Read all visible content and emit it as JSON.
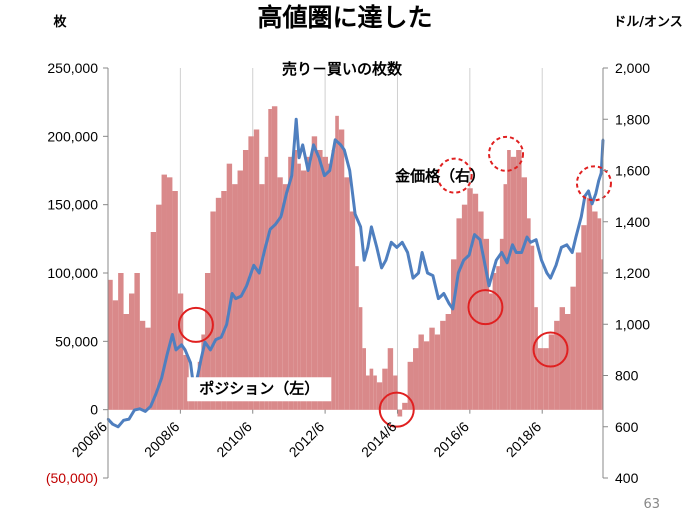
{
  "chart_data": {
    "type": "bar+line",
    "title": "高値圏に達した",
    "subtitle": "売り－買いの枚数",
    "left_axis": {
      "unit": "枚",
      "ylim": [
        -50000,
        250000
      ],
      "ticks": [
        250000,
        200000,
        150000,
        100000,
        50000,
        0,
        -50000
      ],
      "tick_labels": [
        "250,000",
        "200,000",
        "150,000",
        "100,000",
        "50,000",
        "0",
        "(50,000)"
      ]
    },
    "right_axis": {
      "unit": "ドル/オンス",
      "ylim": [
        400,
        2000
      ],
      "ticks": [
        2000,
        1800,
        1600,
        1400,
        1200,
        1000,
        800,
        600,
        400
      ],
      "tick_labels": [
        "2,000",
        "1,800",
        "1,600",
        "1,400",
        "1,200",
        "1,000",
        "800",
        "600",
        "400"
      ]
    },
    "x_axis": {
      "range": [
        2006.42,
        2020.1
      ],
      "ticks": [
        2006.42,
        2008.42,
        2010.42,
        2012.42,
        2014.42,
        2016.42,
        2018.42
      ],
      "tick_labels": [
        "2006/6",
        "2008/6",
        "2010/6",
        "2012/6",
        "2014/6",
        "2016/6",
        "2018/6"
      ]
    },
    "series": [
      {
        "name": "ポジション（左）",
        "type": "bar",
        "axis": "left",
        "color": "#d9898a",
        "points": [
          [
            2006.42,
            95000
          ],
          [
            2006.55,
            80000
          ],
          [
            2006.7,
            100000
          ],
          [
            2006.85,
            70000
          ],
          [
            2007.0,
            85000
          ],
          [
            2007.15,
            100000
          ],
          [
            2007.3,
            65000
          ],
          [
            2007.45,
            60000
          ],
          [
            2007.6,
            130000
          ],
          [
            2007.75,
            150000
          ],
          [
            2007.9,
            172000
          ],
          [
            2008.05,
            170000
          ],
          [
            2008.2,
            160000
          ],
          [
            2008.35,
            85000
          ],
          [
            2008.5,
            40000
          ],
          [
            2008.65,
            20000
          ],
          [
            2008.8,
            10000
          ],
          [
            2008.9,
            35000
          ],
          [
            2009.0,
            55000
          ],
          [
            2009.1,
            100000
          ],
          [
            2009.25,
            145000
          ],
          [
            2009.4,
            155000
          ],
          [
            2009.55,
            160000
          ],
          [
            2009.7,
            180000
          ],
          [
            2009.85,
            165000
          ],
          [
            2010.0,
            175000
          ],
          [
            2010.15,
            190000
          ],
          [
            2010.3,
            200000
          ],
          [
            2010.45,
            205000
          ],
          [
            2010.6,
            165000
          ],
          [
            2010.75,
            185000
          ],
          [
            2010.85,
            220000
          ],
          [
            2010.95,
            222000
          ],
          [
            2011.1,
            170000
          ],
          [
            2011.25,
            165000
          ],
          [
            2011.4,
            185000
          ],
          [
            2011.55,
            190000
          ],
          [
            2011.65,
            180000
          ],
          [
            2011.75,
            175000
          ],
          [
            2011.9,
            185000
          ],
          [
            2012.05,
            200000
          ],
          [
            2012.2,
            190000
          ],
          [
            2012.35,
            185000
          ],
          [
            2012.5,
            180000
          ],
          [
            2012.6,
            190000
          ],
          [
            2012.7,
            215000
          ],
          [
            2012.8,
            205000
          ],
          [
            2012.95,
            170000
          ],
          [
            2013.1,
            145000
          ],
          [
            2013.25,
            105000
          ],
          [
            2013.35,
            75000
          ],
          [
            2013.45,
            45000
          ],
          [
            2013.55,
            25000
          ],
          [
            2013.65,
            30000
          ],
          [
            2013.75,
            25000
          ],
          [
            2013.85,
            20000
          ],
          [
            2014.0,
            30000
          ],
          [
            2014.15,
            45000
          ],
          [
            2014.3,
            25000
          ],
          [
            2014.42,
            -5000
          ],
          [
            2014.55,
            5000
          ],
          [
            2014.7,
            35000
          ],
          [
            2014.85,
            45000
          ],
          [
            2015.0,
            55000
          ],
          [
            2015.15,
            50000
          ],
          [
            2015.3,
            60000
          ],
          [
            2015.45,
            55000
          ],
          [
            2015.6,
            65000
          ],
          [
            2015.75,
            70000
          ],
          [
            2015.9,
            110000
          ],
          [
            2016.05,
            140000
          ],
          [
            2016.2,
            150000
          ],
          [
            2016.35,
            162000
          ],
          [
            2016.5,
            158000
          ],
          [
            2016.65,
            145000
          ],
          [
            2016.8,
            125000
          ],
          [
            2016.95,
            85000
          ],
          [
            2017.05,
            100000
          ],
          [
            2017.15,
            105000
          ],
          [
            2017.25,
            125000
          ],
          [
            2017.35,
            165000
          ],
          [
            2017.45,
            190000
          ],
          [
            2017.55,
            185000
          ],
          [
            2017.7,
            190000
          ],
          [
            2017.85,
            170000
          ],
          [
            2018.0,
            140000
          ],
          [
            2018.1,
            120000
          ],
          [
            2018.2,
            75000
          ],
          [
            2018.3,
            45000
          ],
          [
            2018.45,
            45000
          ],
          [
            2018.6,
            55000
          ],
          [
            2018.75,
            65000
          ],
          [
            2018.9,
            75000
          ],
          [
            2019.05,
            70000
          ],
          [
            2019.2,
            90000
          ],
          [
            2019.35,
            115000
          ],
          [
            2019.5,
            135000
          ],
          [
            2019.65,
            155000
          ],
          [
            2019.8,
            145000
          ],
          [
            2019.95,
            140000
          ],
          [
            2020.05,
            110000
          ]
        ]
      },
      {
        "name": "金価格（右）",
        "type": "line",
        "axis": "right",
        "color": "#4f7fbf",
        "points": [
          [
            2006.42,
            630
          ],
          [
            2006.55,
            610
          ],
          [
            2006.7,
            600
          ],
          [
            2006.85,
            625
          ],
          [
            2007.0,
            630
          ],
          [
            2007.15,
            665
          ],
          [
            2007.3,
            670
          ],
          [
            2007.45,
            660
          ],
          [
            2007.6,
            680
          ],
          [
            2007.75,
            730
          ],
          [
            2007.9,
            790
          ],
          [
            2008.05,
            880
          ],
          [
            2008.2,
            960
          ],
          [
            2008.3,
            900
          ],
          [
            2008.45,
            920
          ],
          [
            2008.55,
            900
          ],
          [
            2008.7,
            850
          ],
          [
            2008.8,
            740
          ],
          [
            2008.9,
            800
          ],
          [
            2009.0,
            870
          ],
          [
            2009.1,
            930
          ],
          [
            2009.25,
            900
          ],
          [
            2009.4,
            940
          ],
          [
            2009.55,
            950
          ],
          [
            2009.7,
            1000
          ],
          [
            2009.85,
            1120
          ],
          [
            2009.95,
            1100
          ],
          [
            2010.1,
            1110
          ],
          [
            2010.25,
            1150
          ],
          [
            2010.45,
            1230
          ],
          [
            2010.6,
            1200
          ],
          [
            2010.75,
            1290
          ],
          [
            2010.9,
            1370
          ],
          [
            2011.05,
            1390
          ],
          [
            2011.2,
            1420
          ],
          [
            2011.35,
            1510
          ],
          [
            2011.5,
            1580
          ],
          [
            2011.62,
            1800
          ],
          [
            2011.7,
            1650
          ],
          [
            2011.8,
            1700
          ],
          [
            2011.95,
            1600
          ],
          [
            2012.1,
            1700
          ],
          [
            2012.25,
            1650
          ],
          [
            2012.4,
            1580
          ],
          [
            2012.55,
            1600
          ],
          [
            2012.7,
            1720
          ],
          [
            2012.85,
            1700
          ],
          [
            2012.95,
            1680
          ],
          [
            2013.1,
            1600
          ],
          [
            2013.25,
            1430
          ],
          [
            2013.4,
            1380
          ],
          [
            2013.5,
            1250
          ],
          [
            2013.6,
            1300
          ],
          [
            2013.7,
            1380
          ],
          [
            2013.85,
            1300
          ],
          [
            2013.98,
            1220
          ],
          [
            2014.1,
            1250
          ],
          [
            2014.25,
            1320
          ],
          [
            2014.4,
            1300
          ],
          [
            2014.55,
            1320
          ],
          [
            2014.7,
            1280
          ],
          [
            2014.85,
            1180
          ],
          [
            2015.0,
            1200
          ],
          [
            2015.1,
            1280
          ],
          [
            2015.25,
            1200
          ],
          [
            2015.4,
            1190
          ],
          [
            2015.55,
            1100
          ],
          [
            2015.7,
            1120
          ],
          [
            2015.85,
            1080
          ],
          [
            2015.95,
            1060
          ],
          [
            2016.1,
            1200
          ],
          [
            2016.25,
            1250
          ],
          [
            2016.4,
            1270
          ],
          [
            2016.55,
            1350
          ],
          [
            2016.7,
            1330
          ],
          [
            2016.8,
            1260
          ],
          [
            2016.95,
            1150
          ],
          [
            2017.05,
            1200
          ],
          [
            2017.15,
            1250
          ],
          [
            2017.3,
            1280
          ],
          [
            2017.45,
            1240
          ],
          [
            2017.6,
            1310
          ],
          [
            2017.7,
            1280
          ],
          [
            2017.85,
            1280
          ],
          [
            2018.0,
            1340
          ],
          [
            2018.1,
            1320
          ],
          [
            2018.25,
            1330
          ],
          [
            2018.4,
            1250
          ],
          [
            2018.55,
            1200
          ],
          [
            2018.65,
            1180
          ],
          [
            2018.8,
            1230
          ],
          [
            2018.95,
            1300
          ],
          [
            2019.1,
            1310
          ],
          [
            2019.25,
            1280
          ],
          [
            2019.35,
            1340
          ],
          [
            2019.5,
            1420
          ],
          [
            2019.6,
            1500
          ],
          [
            2019.7,
            1520
          ],
          [
            2019.8,
            1470
          ],
          [
            2019.9,
            1510
          ],
          [
            2019.98,
            1560
          ],
          [
            2020.05,
            1590
          ],
          [
            2020.1,
            1720
          ]
        ]
      }
    ],
    "annotations": [
      {
        "text": "金価格（右）",
        "x": 2015.6,
        "y_right": 1560
      },
      {
        "text": "ポジション（左）",
        "x": 2010.6,
        "y_left": 12000
      }
    ],
    "highlight_circles": [
      {
        "axis": "left",
        "x": 2008.85,
        "y": 62000
      },
      {
        "axis": "left",
        "x": 2014.4,
        "y": 0
      },
      {
        "axis": "left",
        "x": 2016.85,
        "y": 75000
      },
      {
        "axis": "left",
        "x": 2018.65,
        "y": 44000
      },
      {
        "axis": "right",
        "x": 2016.0,
        "y": 1580,
        "dashed": true
      },
      {
        "axis": "right",
        "x": 2017.42,
        "y": 1665,
        "dashed": true
      },
      {
        "axis": "right",
        "x": 2019.85,
        "y": 1550,
        "dashed": true
      }
    ],
    "colors": {
      "highlight": "#e02020",
      "grid": "#d0d0d0"
    },
    "page_number": "63"
  }
}
